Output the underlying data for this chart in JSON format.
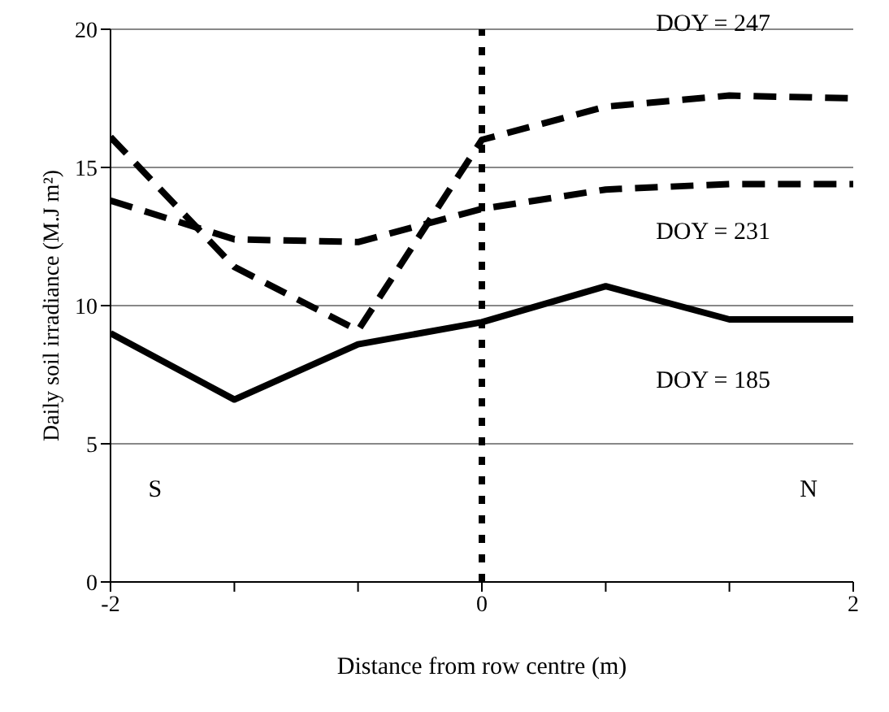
{
  "chart_data": {
    "type": "line",
    "xlabel": "Distance from row  centre (m)",
    "ylabel": "Daily soil irradiance  (M.J m²)",
    "xlim": [
      -2,
      2
    ],
    "xticks": [
      -2,
      {
        "value": -1.333,
        "label": null
      },
      {
        "value": -0.667,
        "label": null
      },
      0,
      {
        "value": 0.667,
        "label": null
      },
      {
        "value": 1.333,
        "label": null
      },
      2
    ],
    "ylim": [
      0,
      20
    ],
    "yticks": [
      0,
      5,
      10,
      15,
      20
    ],
    "grid": "y",
    "marker": "none",
    "x": [
      -2,
      -1.333,
      -0.667,
      0,
      0.667,
      1.333,
      2
    ],
    "series": [
      {
        "name": "DOY = 185",
        "color": "#000000",
        "line_style": "solid",
        "values": [
          9.0,
          6.6,
          8.6,
          9.4,
          10.7,
          9.5,
          9.5
        ]
      },
      {
        "name": "DOY = 247",
        "color": "#000000",
        "line_style": "dashed",
        "values": [
          16.1,
          11.4,
          9.1,
          16.0,
          17.2,
          17.6,
          17.5
        ]
      },
      {
        "name": "DOY = 231",
        "color": "#000000",
        "line_style": "dashed",
        "values": [
          13.8,
          12.4,
          12.3,
          13.5,
          14.2,
          14.4,
          14.4
        ]
      }
    ],
    "ref_lines": [
      {
        "axis": "x",
        "value": 0,
        "color": "#000000",
        "line_style": "dotted"
      }
    ],
    "annotations": [
      "S",
      "N"
    ]
  }
}
